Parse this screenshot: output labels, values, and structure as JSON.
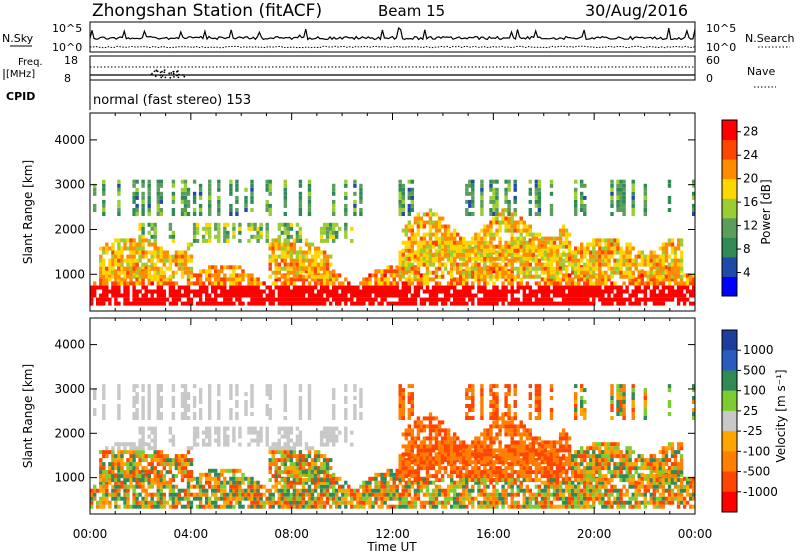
{
  "header": {
    "station": "Zhongshan Station (fitACF)",
    "beam": "Beam 15",
    "date": "30/Aug/2016"
  },
  "panels": {
    "nsky": {
      "label": "N.Sky",
      "top_tick": "10^5",
      "bottom_tick": "10^0"
    },
    "nsearch": {
      "label": "N.Search",
      "top_tick": "10^5",
      "bottom_tick": "10^0"
    },
    "freq": {
      "label_line1": "Freq.",
      "label_line2": "[MHz]",
      "top_tick": "18",
      "bottom_tick": "8"
    },
    "nave": {
      "label": "Nave",
      "top_tick": "60",
      "bottom_tick": "0"
    },
    "cpid": {
      "label": "CPID",
      "value": "normal (fast stereo) 153"
    }
  },
  "colors": {
    "power": [
      "#0000ff",
      "#1f4aa8",
      "#2e8b57",
      "#5a9e5a",
      "#9acd32",
      "#ffd700",
      "#ff8c00",
      "#ff4500",
      "#ff0000"
    ],
    "velocity": [
      "#1a3d9e",
      "#2a5cc0",
      "#2e8b57",
      "#7ccd32",
      "#c8c8c8",
      "#ffa500",
      "#ff7f00",
      "#ff4500",
      "#ff0000"
    ]
  },
  "chart_data": [
    {
      "type": "heatmap",
      "name": "power",
      "ylabel": "Slant Range [km]",
      "yticks": [
        1000,
        2000,
        3000,
        4000
      ],
      "ylim": [
        180,
        4600
      ],
      "xlim": [
        0,
        24
      ],
      "colorbar_label": "Power [dB]",
      "colorbar_ticks": [
        "4",
        "8",
        "12",
        "16",
        "20",
        "24",
        "28"
      ],
      "colorbar_range": [
        0,
        30
      ]
    },
    {
      "type": "heatmap",
      "name": "velocity",
      "ylabel": "Slant Range [km]",
      "yticks": [
        1000,
        2000,
        3000,
        4000
      ],
      "ylim": [
        180,
        4600
      ],
      "xlim": [
        0,
        24
      ],
      "colorbar_label": "Velocity [m s⁻¹]",
      "colorbar_ticks": [
        "1000",
        "500",
        "100",
        "25",
        "-25",
        "-100",
        "-500",
        "-1000"
      ]
    }
  ],
  "xaxis": {
    "label": "Time UT",
    "tick_labels": [
      "00:00",
      "04:00",
      "08:00",
      "12:00",
      "16:00",
      "20:00",
      "00:00"
    ],
    "tick_hours": [
      0,
      4,
      8,
      12,
      16,
      20,
      24
    ]
  }
}
